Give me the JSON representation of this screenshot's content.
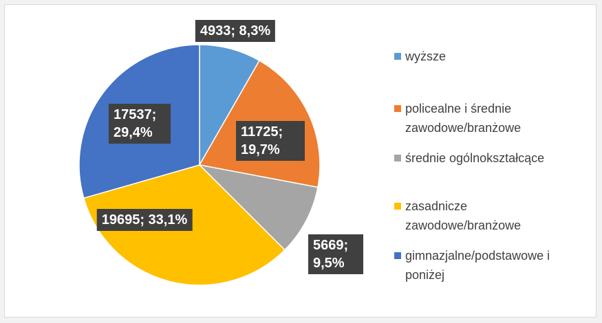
{
  "chart_data": {
    "type": "pie",
    "categories": [
      "wyższe",
      "policealne i średnie zawodowe/branżowe",
      "średnie ogólnokształcące",
      "zasadnicze zawodowe/branżowe",
      "gimnazjalne/podstawowe i poniżej"
    ],
    "values": [
      4933,
      11725,
      5669,
      19695,
      17537
    ],
    "value_labels": [
      "4933; 8,3%",
      "11725; 19,7%",
      "5669; 9,5%",
      "19695; 33,1%",
      "17537; 29,4%"
    ],
    "colors": [
      "#5B9BD5",
      "#ED7D31",
      "#A5A5A5",
      "#FFC000",
      "#4472C4"
    ],
    "legend": "right"
  }
}
